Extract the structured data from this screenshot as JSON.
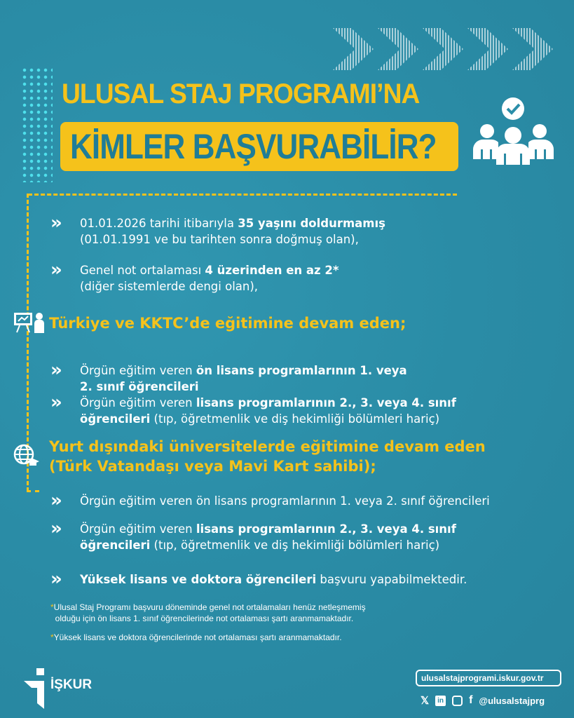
{
  "colors": {
    "background": "#2b8ea9",
    "accent": "#f5c21b",
    "title_box_text": "#1f7d97"
  },
  "title": {
    "line1": "ULUSAL STAJ PROGRAMI’NA",
    "line2": "KİMLER BAŞVURABİLİR?"
  },
  "general_items": [
    {
      "lines": [
        [
          {
            "t": "01.01.2026 tarihi itibarıyla "
          },
          {
            "t": "35 yaşını doldurmamış",
            "b": true
          }
        ],
        [
          {
            "t": "(01.01.1991 ve bu tarihten sonra doğmuş olan),"
          }
        ]
      ]
    },
    {
      "lines": [
        [
          {
            "t": "Genel not ortalaması "
          },
          {
            "t": "4 üzerinden en az 2*",
            "b": true
          }
        ],
        [
          {
            "t": "(diğer sistemlerde dengi olan),"
          }
        ]
      ]
    }
  ],
  "section1": {
    "heading": "Türkiye ve KKTC’de eğitimine devam eden;",
    "icon": "presentation-teacher-icon",
    "items": [
      {
        "lines": [
          [
            {
              "t": "Örgün eğitim veren "
            },
            {
              "t": "ön lisans programlarının 1. veya",
              "b": true
            }
          ],
          [
            {
              "t": "2. sınıf öğrencileri",
              "b": true
            }
          ]
        ]
      },
      {
        "lines": [
          [
            {
              "t": "Örgün eğitim veren "
            },
            {
              "t": "lisans programlarının 2., 3. veya 4. sınıf",
              "b": true
            }
          ],
          [
            {
              "t": "öğrencileri",
              "b": true
            },
            {
              "t": " (tıp, öğretmenlik ve diş hekimliği bölümleri hariç)"
            }
          ]
        ]
      }
    ]
  },
  "section2": {
    "heading_line1": "Yurt dışındaki üniversitelerde eğitimine devam eden",
    "heading_line2": "(Türk Vatandaşı veya Mavi Kart sahibi);",
    "icon": "globe-graduation-icon",
    "items": [
      {
        "lines": [
          [
            {
              "t": "Örgün eğitim veren "
            },
            {
              "t": "ön lisans programlarının 1. veya 2. sınıf öğrencileri"
            }
          ]
        ]
      },
      {
        "lines": [
          [
            {
              "t": "Örgün eğitim veren "
            },
            {
              "t": "lisans programlarının 2., 3. veya 4. sınıf",
              "b": true
            }
          ],
          [
            {
              "t": "öğrencileri",
              "b": true
            },
            {
              "t": " (tıp, öğretmenlik ve diş hekimliği bölümleri hariç)"
            }
          ]
        ]
      },
      {
        "lines": [
          [
            {
              "t": "Yüksek lisans ve doktora öğrencileri",
              "b": true
            },
            {
              "t": " başvuru yapabilmektedir."
            }
          ]
        ]
      }
    ]
  },
  "notes": [
    {
      "star": "*",
      "line1": "Ulusal Staj Programı başvuru döneminde genel not ortalamaları henüz netleşmemiş",
      "line2": "olduğu için ön lisans 1. sınıf öğrencilerinde not ortalaması şartı aranmamaktadır."
    },
    {
      "star": "*",
      "line1": "Yüksek lisans ve doktora öğrencilerinde not ortalaması şartı aranmamaktadır."
    }
  ],
  "footer": {
    "logo_text": "İŞKUR",
    "url": "ulusalstajprogrami.iskur.gov.tr",
    "handle": "@ulusalstajprg",
    "social_icons": [
      "x-icon",
      "linkedin-icon",
      "instagram-icon",
      "facebook-icon"
    ]
  }
}
